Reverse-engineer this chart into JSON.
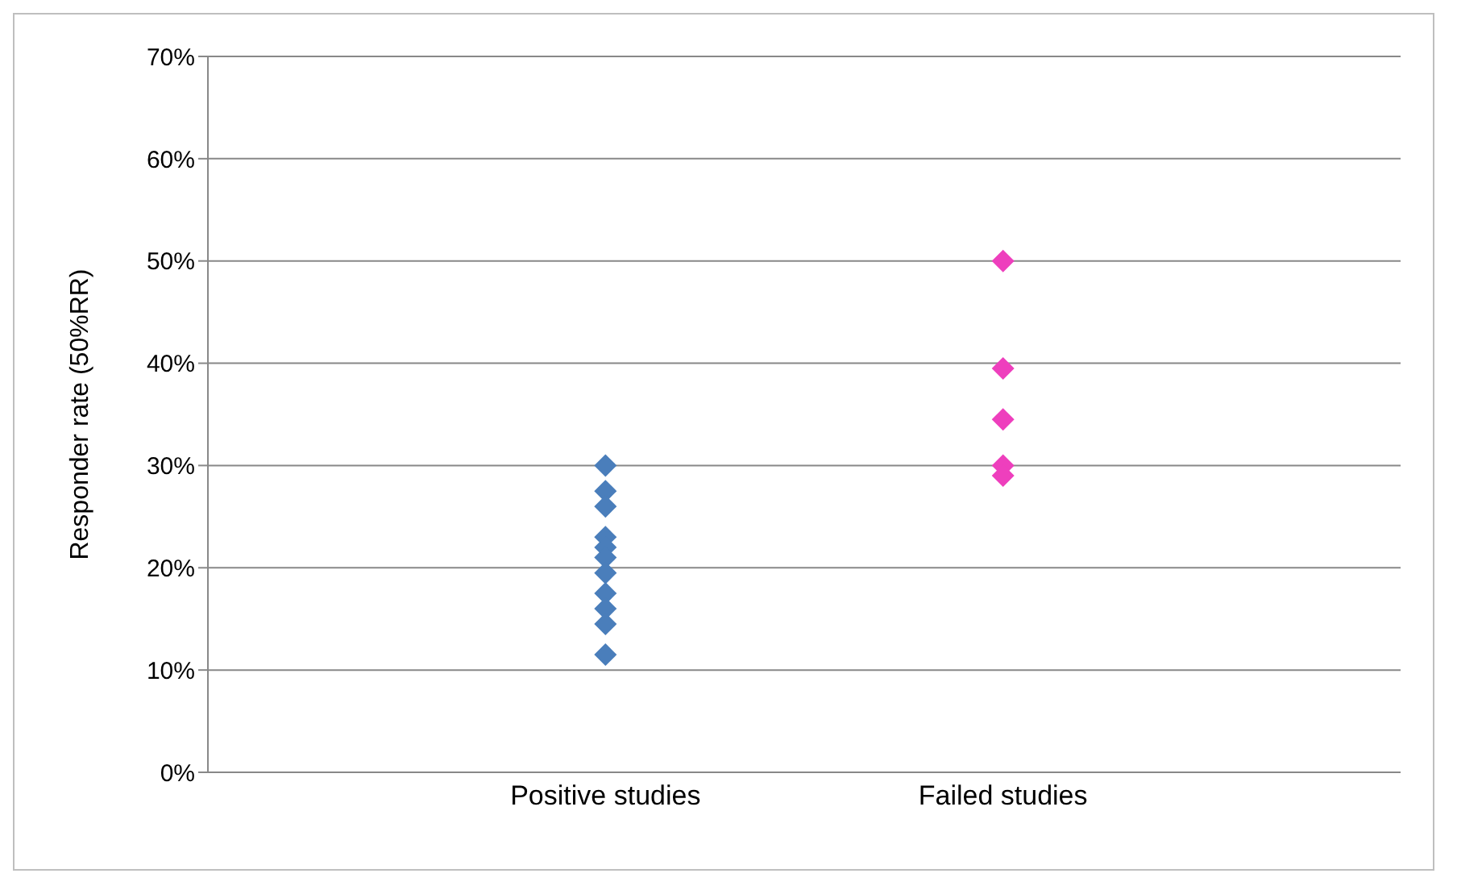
{
  "chart_data": {
    "type": "scatter",
    "ylabel": "Responder  rate  (50%RR)",
    "categories": [
      "Positive studies",
      "Failed studies"
    ],
    "series": [
      {
        "color": "#4a7ebb",
        "x": [
          "Positive studies",
          "Positive studies",
          "Positive studies",
          "Positive studies",
          "Positive studies",
          "Positive studies",
          "Positive studies",
          "Positive studies",
          "Positive studies",
          "Positive studies",
          "Positive studies"
        ],
        "values": [
          30,
          27.5,
          26,
          23,
          22,
          21,
          19.5,
          17.5,
          16,
          14.5,
          11.5
        ]
      },
      {
        "color": "#ee3fbd",
        "x": [
          "Failed studies",
          "Failed studies",
          "Failed studies",
          "Failed studies",
          "Failed studies"
        ],
        "values": [
          50,
          39.5,
          34.5,
          30,
          29
        ]
      }
    ],
    "ylim": [
      0,
      70
    ],
    "yticks": [
      {
        "value": 0,
        "label": "0%"
      },
      {
        "value": 10,
        "label": "10%"
      },
      {
        "value": 20,
        "label": "20%"
      },
      {
        "value": 30,
        "label": "30%"
      },
      {
        "value": 40,
        "label": "40%"
      },
      {
        "value": 50,
        "label": "50%"
      },
      {
        "value": 60,
        "label": "60%"
      },
      {
        "value": 70,
        "label": "70%"
      }
    ],
    "grid": "y",
    "marker": "diamond",
    "legend": false
  }
}
